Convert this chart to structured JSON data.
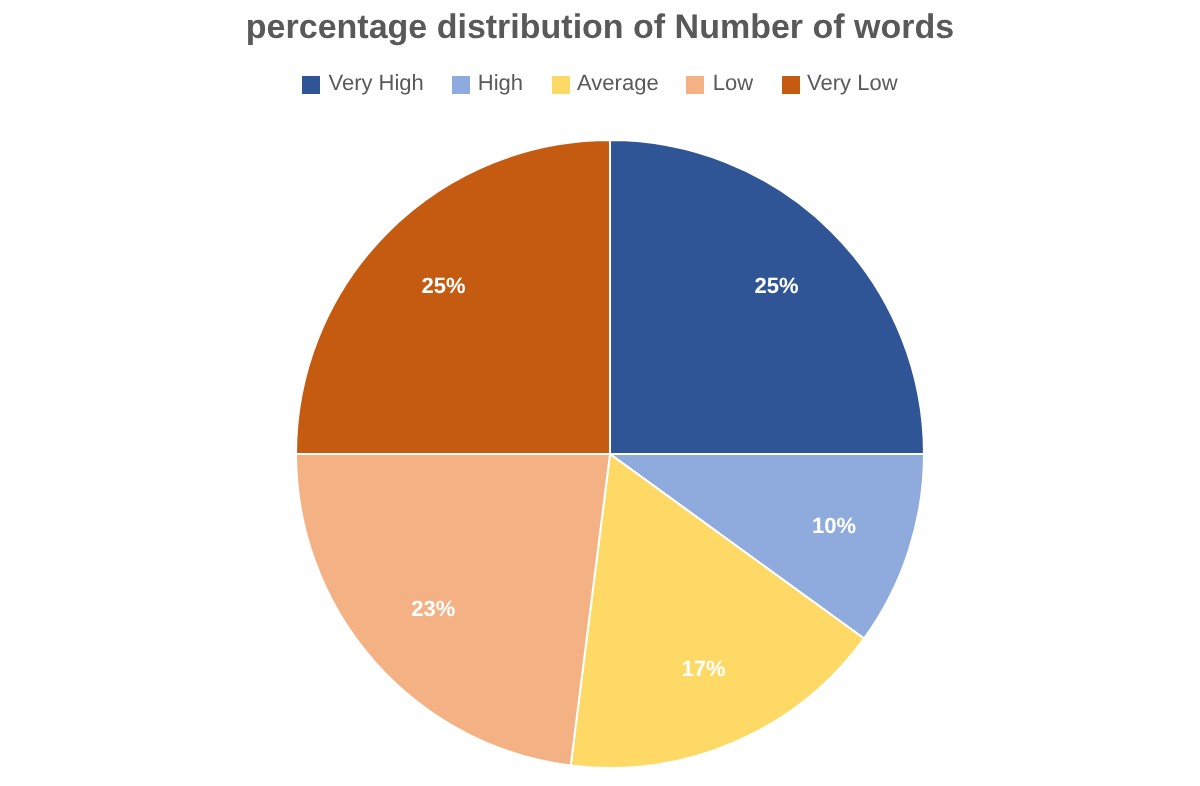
{
  "chart_data": {
    "type": "pie",
    "title": "percentage distribution of Number of words",
    "categories": [
      "Very High",
      "High",
      "Average",
      "Low",
      "Very Low"
    ],
    "values": [
      25,
      10,
      17,
      23,
      25
    ],
    "value_labels": [
      "25%",
      "10%",
      "17%",
      "23%",
      "25%"
    ],
    "colors": [
      "#2f5597",
      "#8faadc",
      "#ffd966",
      "#f4b183",
      "#c55a11"
    ],
    "legend": "top"
  }
}
